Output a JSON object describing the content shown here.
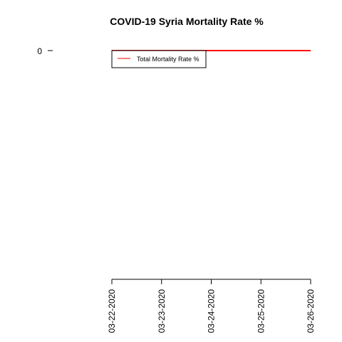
{
  "chart_data": {
    "type": "line",
    "title": "COVID-19 Syria Mortality Rate %",
    "xlabel": "",
    "ylabel": "",
    "x": [
      "03-22-2020",
      "03-23-2020",
      "03-24-2020",
      "03-25-2020",
      "03-26-2020"
    ],
    "series": [
      {
        "name": "Total Mortality Rate %",
        "color": "#ff0000",
        "values": [
          0,
          0,
          0,
          0,
          0
        ]
      }
    ],
    "y_ticks": [
      "0"
    ],
    "legend_position": "top-left",
    "grid": false
  }
}
